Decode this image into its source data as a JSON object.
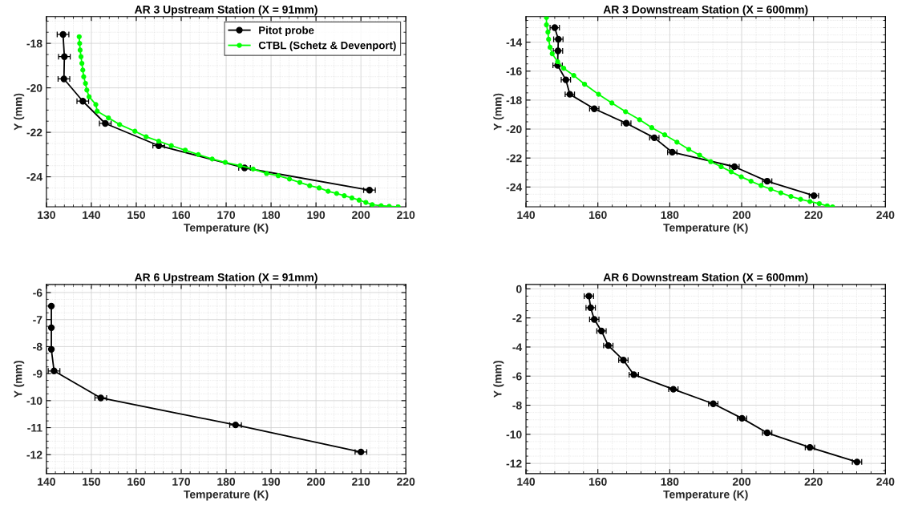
{
  "chart_data": [
    {
      "type": "line",
      "title": "AR 3 Upstream Station (X = 91mm)",
      "xlabel": "Temperature (K)",
      "ylabel": "Y (mm)",
      "xlim": [
        130,
        210
      ],
      "xticks": [
        130,
        140,
        150,
        160,
        170,
        180,
        190,
        200,
        210
      ],
      "ylim": [
        -25.35,
        -16.8
      ],
      "yticks": [
        -24,
        -22,
        -20,
        -18
      ],
      "grid": true,
      "legend": "top right",
      "marker": "circle",
      "series": [
        {
          "name": "Pitot probe",
          "color": "#000000",
          "x": [
            133.7,
            134.0,
            133.9,
            138.1,
            143.1,
            155.0,
            174.1,
            201.9
          ],
          "values": [
            -17.6,
            -18.6,
            -19.6,
            -20.6,
            -21.6,
            -22.6,
            -23.6,
            -24.6
          ],
          "xerrors": [
            1.3,
            1.3,
            1.3,
            1.3,
            1.3,
            1.3,
            1.3,
            1.3
          ]
        },
        {
          "name": "CTBL (Schetz & Devenport)",
          "color": "#00ff00",
          "x": [
            137.3,
            137.4,
            137.5,
            137.7,
            137.9,
            138.1,
            138.3,
            138.7,
            139.0,
            139.5,
            141.0,
            141.3,
            143.8,
            146.3,
            149.7,
            152.2,
            155.0,
            157.8,
            160.9,
            163.8,
            166.9,
            169.8,
            173.1,
            176.0,
            179.0,
            181.6,
            184.1,
            186.4,
            188.6,
            190.7,
            192.7,
            194.6,
            196.3,
            198.0,
            199.6,
            201.1,
            202.5,
            204.5,
            206.3,
            208.3
          ],
          "values": [
            -17.7,
            -18.0,
            -18.3,
            -18.6,
            -18.9,
            -19.2,
            -19.5,
            -19.8,
            -20.1,
            -20.4,
            -20.75,
            -21.05,
            -21.35,
            -21.65,
            -21.95,
            -22.2,
            -22.4,
            -22.6,
            -22.8,
            -23.0,
            -23.2,
            -23.35,
            -23.5,
            -23.65,
            -23.85,
            -23.95,
            -24.1,
            -24.25,
            -24.4,
            -24.5,
            -24.65,
            -24.75,
            -24.85,
            -24.95,
            -25.05,
            -25.15,
            -25.25,
            -25.3,
            -25.33,
            -25.35
          ]
        }
      ]
    },
    {
      "type": "line",
      "title": "AR 3 Downstream Station (X = 600mm)",
      "xlabel": "Temperature (K)",
      "ylabel": "Y (mm)",
      "xlim": [
        140,
        240
      ],
      "xticks": [
        140,
        160,
        180,
        200,
        220,
        240
      ],
      "ylim": [
        -25.37,
        -12.24
      ],
      "yticks": [
        -24,
        -22,
        -20,
        -18,
        -16,
        -14
      ],
      "grid": true,
      "marker": "circle",
      "series": [
        {
          "color": "#000000",
          "x": [
            148.0,
            149.0,
            148.9,
            148.8,
            151.1,
            152.2,
            159.0,
            167.9,
            175.7,
            180.7,
            198.0,
            207.1,
            220.1
          ],
          "values": [
            -13.0,
            -13.8,
            -14.6,
            -15.6,
            -16.6,
            -17.6,
            -18.6,
            -19.6,
            -20.6,
            -21.6,
            -22.6,
            -23.6,
            -24.6
          ],
          "xerrors": [
            1.3,
            1.3,
            1.3,
            1.3,
            1.3,
            1.3,
            1.3,
            1.3,
            1.3,
            1.3,
            1.3,
            1.3,
            1.3
          ]
        },
        {
          "color": "#00ff00",
          "x": [
            145.7,
            145.7,
            146.1,
            146.3,
            146.7,
            147.3,
            148.8,
            150.5,
            153.3,
            156.3,
            160.2,
            163.9,
            167.7,
            171.6,
            175.0,
            178.6,
            182.0,
            185.3,
            188.3,
            191.4,
            194.3,
            197.1,
            199.9,
            202.6,
            205.4,
            208.1,
            210.9,
            213.7,
            216.4,
            219.0,
            221.6,
            223.8,
            225.3
          ],
          "values": [
            -12.3,
            -12.8,
            -13.3,
            -13.8,
            -14.35,
            -14.8,
            -15.35,
            -15.8,
            -16.3,
            -16.9,
            -17.6,
            -18.2,
            -18.8,
            -19.35,
            -19.9,
            -20.4,
            -20.9,
            -21.4,
            -21.8,
            -22.25,
            -22.6,
            -22.95,
            -23.3,
            -23.6,
            -23.9,
            -24.15,
            -24.4,
            -24.65,
            -24.85,
            -25.0,
            -25.15,
            -25.3,
            -25.37
          ]
        }
      ]
    },
    {
      "type": "line",
      "title": "AR 6 Upstream Station (X = 91mm)",
      "xlabel": "Temperature (K)",
      "ylabel": "Y (mm)",
      "xlim": [
        140,
        220
      ],
      "xticks": [
        140,
        150,
        160,
        170,
        180,
        190,
        200,
        210,
        220
      ],
      "ylim": [
        -12.7,
        -5.7
      ],
      "yticks": [
        -12,
        -11,
        -10,
        -9,
        -8,
        -7,
        -6
      ],
      "grid": true,
      "marker": "circle",
      "series": [
        {
          "color": "#000000",
          "x": [
            141.1,
            141.1,
            141.1,
            141.7,
            152.1,
            182.1,
            210.0
          ],
          "values": [
            -6.5,
            -7.3,
            -8.1,
            -8.9,
            -9.9,
            -10.9,
            -11.9
          ],
          "xerrors": [
            null,
            null,
            null,
            1.3,
            1.3,
            1.3,
            1.3
          ]
        }
      ]
    },
    {
      "type": "line",
      "title": "AR 6 Downstream Station (X = 600mm)",
      "xlabel": "Temperature (K)",
      "ylabel": "Y (mm)",
      "xlim": [
        140,
        240
      ],
      "xticks": [
        140,
        160,
        180,
        200,
        220,
        240
      ],
      "ylim": [
        -12.7,
        0.3
      ],
      "yticks": [
        -12,
        -10,
        -8,
        -6,
        -4,
        -2,
        0
      ],
      "grid": true,
      "marker": "circle",
      "series": [
        {
          "color": "#000000",
          "x": [
            157.5,
            158.0,
            159.0,
            161.0,
            162.9,
            167.1,
            170.0,
            181.0,
            192.1,
            200.1,
            207.1,
            219.0,
            232.1
          ],
          "values": [
            -0.5,
            -1.3,
            -2.1,
            -2.9,
            -3.9,
            -4.9,
            -5.9,
            -6.9,
            -7.9,
            -8.9,
            -9.9,
            -10.9,
            -11.9
          ],
          "xerrors": [
            1.3,
            1.3,
            1.3,
            1.3,
            1.3,
            1.3,
            1.3,
            1.3,
            1.3,
            1.3,
            1.3,
            1.3,
            1.3
          ]
        }
      ]
    }
  ]
}
